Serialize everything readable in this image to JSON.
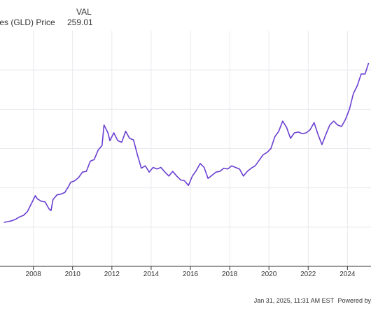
{
  "legend": {
    "header": "VAL",
    "series_label": "hares (GLD) Price",
    "series_value": "259.01"
  },
  "footer": {
    "timestamp": "Jan 31, 2025, 11:31 AM EST",
    "powered_by": "Powered by"
  },
  "colors": {
    "line": "#6a3fd1",
    "grid": "#e9e9ee",
    "axis": "#333333"
  },
  "chart_data": {
    "type": "line",
    "title": "",
    "xlabel": "",
    "ylabel": "",
    "series": [
      {
        "name": "hares (GLD) Price",
        "x": [
          2006.5,
          2006.7,
          2006.9,
          2007.1,
          2007.3,
          2007.5,
          2007.7,
          2007.9,
          2008.1,
          2008.2,
          2008.4,
          2008.6,
          2008.8,
          2008.9,
          2009.0,
          2009.2,
          2009.4,
          2009.6,
          2009.8,
          2009.9,
          2010.1,
          2010.3,
          2010.5,
          2010.7,
          2010.9,
          2011.1,
          2011.3,
          2011.5,
          2011.6,
          2011.8,
          2011.9,
          2012.1,
          2012.3,
          2012.5,
          2012.7,
          2012.9,
          2013.1,
          2013.3,
          2013.5,
          2013.7,
          2013.9,
          2014.1,
          2014.3,
          2014.5,
          2014.7,
          2014.9,
          2015.1,
          2015.3,
          2015.5,
          2015.7,
          2015.9,
          2016.1,
          2016.3,
          2016.5,
          2016.7,
          2016.9,
          2017.1,
          2017.3,
          2017.5,
          2017.7,
          2017.9,
          2018.1,
          2018.3,
          2018.5,
          2018.7,
          2018.9,
          2019.1,
          2019.3,
          2019.5,
          2019.7,
          2019.9,
          2020.1,
          2020.3,
          2020.5,
          2020.7,
          2020.9,
          2021.1,
          2021.3,
          2021.5,
          2021.7,
          2021.9,
          2022.1,
          2022.3,
          2022.5,
          2022.7,
          2022.9,
          2023.1,
          2023.3,
          2023.5,
          2023.7,
          2023.9,
          2024.1,
          2024.3,
          2024.5,
          2024.7,
          2024.9,
          2025.08
        ],
        "values": [
          56,
          57,
          58,
          60,
          63,
          65,
          70,
          80,
          90,
          86,
          83,
          82,
          73,
          71,
          85,
          91,
          92,
          94,
          102,
          107,
          109,
          113,
          120,
          121,
          134,
          136,
          148,
          154,
          180,
          170,
          160,
          170,
          160,
          158,
          172,
          163,
          161,
          142,
          125,
          128,
          120,
          126,
          124,
          126,
          120,
          115,
          121,
          115,
          110,
          109,
          103,
          115,
          122,
          131,
          126,
          112,
          116,
          120,
          121,
          125,
          124,
          128,
          126,
          124,
          115,
          121,
          125,
          128,
          135,
          142,
          145,
          150,
          165,
          172,
          185,
          177,
          163,
          170,
          171,
          169,
          170,
          174,
          183,
          168,
          155,
          168,
          180,
          185,
          180,
          178,
          187,
          200,
          220,
          230,
          245,
          245,
          259.01
        ]
      }
    ],
    "xlim": [
      2006.3,
      2025.2
    ],
    "ylim": [
      0,
      300
    ],
    "x_ticks": [
      "2008",
      "2010",
      "2012",
      "2014",
      "2016",
      "2018",
      "2020",
      "2022",
      "2024"
    ],
    "x_tick_values": [
      2008,
      2010,
      2012,
      2014,
      2016,
      2018,
      2020,
      2022,
      2024
    ],
    "y_gridlines": [
      50,
      100,
      150,
      200,
      250
    ],
    "grid": true,
    "legend_position": "top-left"
  }
}
